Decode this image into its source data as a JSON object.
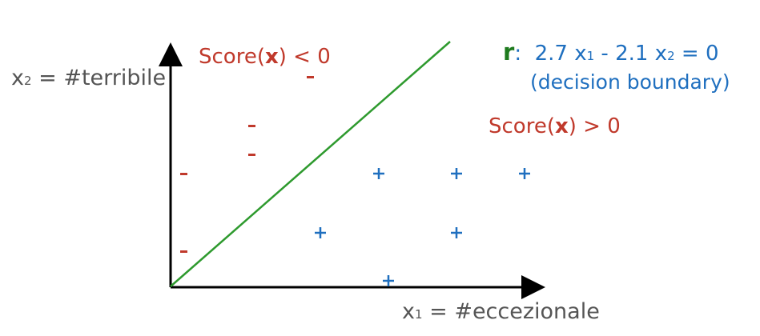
{
  "axes": {
    "y_label_var": "x",
    "y_label_sub": "2",
    "y_label_rest": " = #terribile",
    "x_label_var": "x",
    "x_label_sub": "1",
    "x_label_rest": " = #eccezionale"
  },
  "regions": {
    "negative": {
      "pre": "Score(",
      "var": "x",
      "post": ") < 0"
    },
    "positive": {
      "pre": "Score(",
      "var": "x",
      "post": ") > 0"
    }
  },
  "boundary": {
    "name": "r",
    "colon": ":",
    "equation_a": "  2.7 x",
    "sub1": "1",
    "equation_b": " - 2.1 x",
    "sub2": "2",
    "equation_c": " = 0",
    "caption": "(decision boundary)"
  },
  "markers": {
    "negative_symbol": "-",
    "positive_symbol": "+"
  },
  "colors": {
    "axis": "#000000",
    "line": "#2e9a2e",
    "negative": "#c0392b",
    "positive": "#1f6fbf",
    "label_gray": "#555555"
  }
}
